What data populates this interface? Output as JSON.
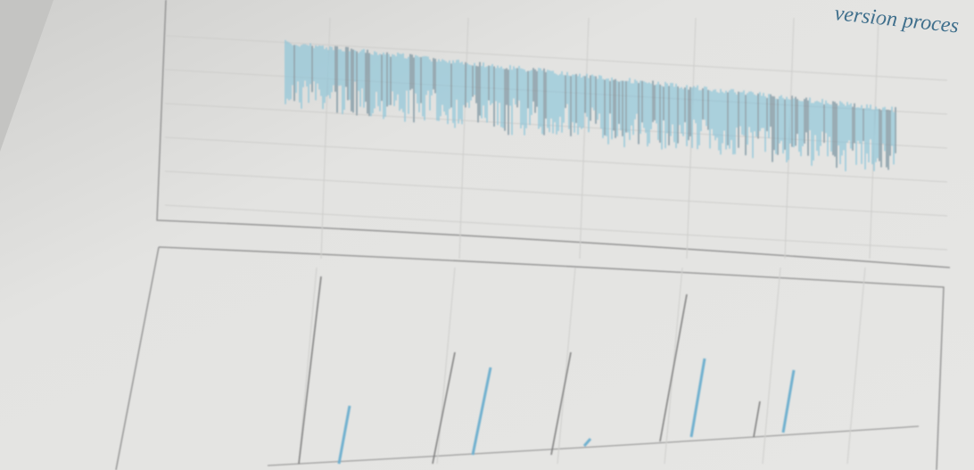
{
  "heading_fragment": "version proces"
}
